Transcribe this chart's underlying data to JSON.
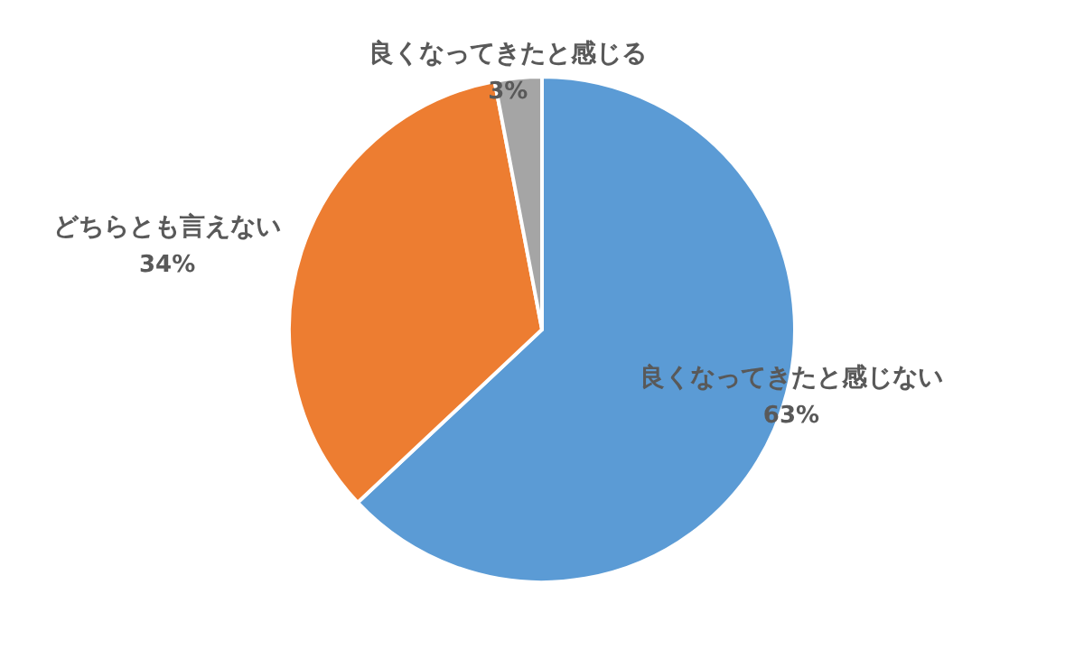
{
  "chart_data": {
    "type": "pie",
    "categories": [
      "良くなってきたと感じない",
      "どちらとも言えない",
      "良くなってきたと感じる"
    ],
    "values": [
      63,
      34,
      3
    ],
    "colors": [
      "#5b9bd5",
      "#ed7d31",
      "#a5a5a5"
    ],
    "value_labels": [
      "63%",
      "34%",
      "3%"
    ],
    "legend": false
  }
}
